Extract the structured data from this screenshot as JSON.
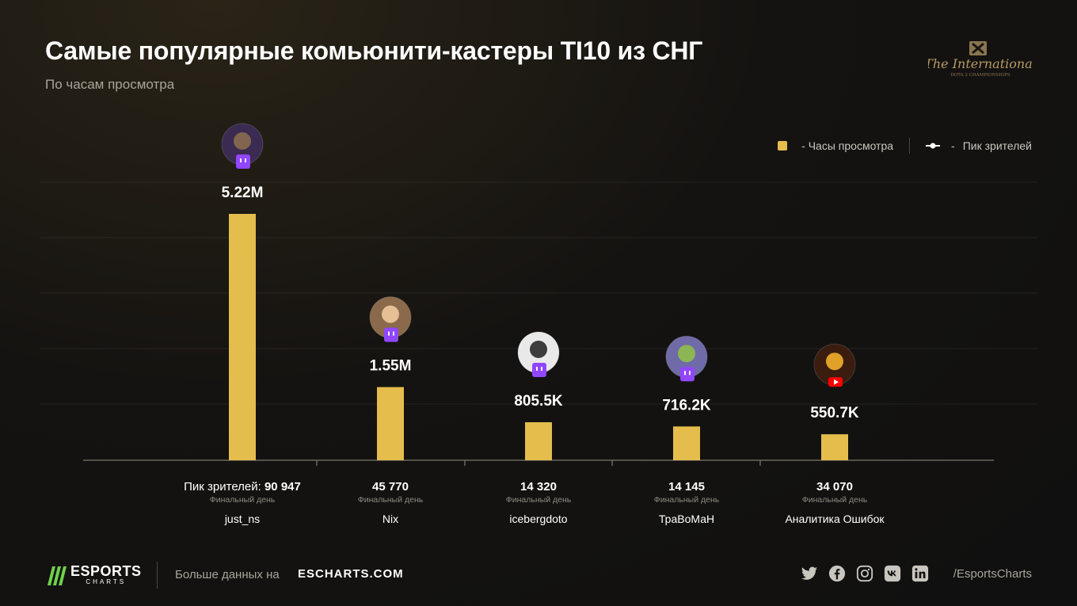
{
  "header": {
    "title": "Самые популярные комьюнити-кастеры TI10 из СНГ",
    "subtitle": "По часам просмотра",
    "logo_text_line1": "The International",
    "logo_text_line2": "DOTA 2 CHAMPIONSHIPS"
  },
  "legend": {
    "hours_label": "- Часы просмотра",
    "peak_dash": "-",
    "peak_label": "Пик зрителей"
  },
  "colors": {
    "bar": "#e4bd4c",
    "twitch": "#9146ff",
    "youtube": "#ff0000",
    "accent_green": "#6fd14a"
  },
  "chart_data": {
    "type": "bar",
    "title": "Самые популярные комьюнити-кастеры TI10 из СНГ",
    "subtitle": "По часам просмотра",
    "ylim": [
      0,
      5500000
    ],
    "grid": true,
    "legend_position": "top-right",
    "peak_prefix": "Пик зрителей:",
    "peak_sub": "Финальный день",
    "series": [
      {
        "name": "Часы просмотра",
        "values": [
          5220000,
          1550000,
          805500,
          716200,
          550700
        ]
      }
    ],
    "categories": [
      {
        "name": "just_ns",
        "value": 5220000,
        "label": "5.22M",
        "peak": "90 947",
        "platform": "twitch"
      },
      {
        "name": "Nix",
        "value": 1550000,
        "label": "1.55M",
        "peak": "45 770",
        "platform": "twitch"
      },
      {
        "name": "icebergdoto",
        "value": 805500,
        "label": "805.5K",
        "peak": "14 320",
        "platform": "twitch"
      },
      {
        "name": "ТраВоМаН",
        "value": 716200,
        "label": "716.2K",
        "peak": "14 145",
        "platform": "twitch"
      },
      {
        "name": "Аналитика Ошибок",
        "value": 550700,
        "label": "550.7K",
        "peak": "34 070",
        "platform": "youtube"
      }
    ]
  },
  "footer": {
    "brand_line1": "ESPORTS",
    "brand_line2": "CHARTS",
    "more_label": "Больше данных на",
    "site": "ESCHARTS.COM",
    "handle": "/EsportsCharts",
    "socials": [
      "twitter-icon",
      "facebook-icon",
      "instagram-icon",
      "vk-icon",
      "linkedin-icon"
    ]
  }
}
